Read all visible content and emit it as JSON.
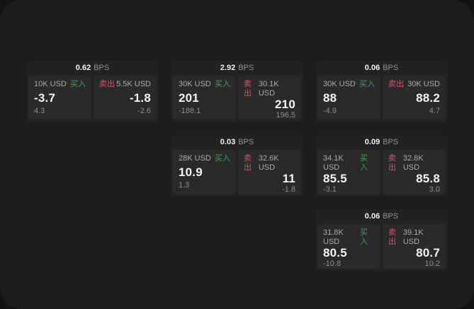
{
  "window": {
    "name": "fx-quote-board"
  },
  "colors": {
    "buy_green": "#43a05f",
    "sell_red": "#d6536a",
    "backdrop": "#121212",
    "window_bg": "#1d1d1d",
    "card_bg": "#222222",
    "panel_bg": "#2a2a2a"
  },
  "cards": [
    {
      "bps_value": "0.62",
      "bps_label": "BPS",
      "buy": {
        "size": "10K USD",
        "side_label": "买入",
        "price": "-3.7",
        "delta": "4.3"
      },
      "sell": {
        "size": "5.5K USD",
        "side_label": "卖出",
        "price": "-1.8",
        "delta": "-2.6"
      },
      "grid": {
        "row": 1,
        "col": 1
      }
    },
    {
      "bps_value": "2.92",
      "bps_label": "BPS",
      "buy": {
        "size": "30K USD",
        "side_label": "买入",
        "price": "201",
        "delta": "-188.1"
      },
      "sell": {
        "size": "30.1K USD",
        "side_label": "卖出",
        "price": "210",
        "delta": "196.5"
      },
      "grid": {
        "row": 1,
        "col": 2
      }
    },
    {
      "bps_value": "0.06",
      "bps_label": "BPS",
      "buy": {
        "size": "30K USD",
        "side_label": "买入",
        "price": "88",
        "delta": "-4.9"
      },
      "sell": {
        "size": "30K USD",
        "side_label": "卖出",
        "price": "88.2",
        "delta": "4.7"
      },
      "grid": {
        "row": 1,
        "col": 3
      }
    },
    {
      "bps_value": "0.03",
      "bps_label": "BPS",
      "buy": {
        "size": "28K USD",
        "side_label": "买入",
        "price": "10.9",
        "delta": "1.3"
      },
      "sell": {
        "size": "32.6K USD",
        "side_label": "卖出",
        "price": "11",
        "delta": "-1.8"
      },
      "grid": {
        "row": 2,
        "col": 2
      }
    },
    {
      "bps_value": "0.09",
      "bps_label": "BPS",
      "buy": {
        "size": "34.1K USD",
        "side_label": "买入",
        "price": "85.5",
        "delta": "-3.1"
      },
      "sell": {
        "size": "32.8K USD",
        "side_label": "卖出",
        "price": "85.8",
        "delta": "3.0"
      },
      "grid": {
        "row": 2,
        "col": 3
      }
    },
    {
      "bps_value": "0.06",
      "bps_label": "BPS",
      "buy": {
        "size": "31.8K USD",
        "side_label": "买入",
        "price": "80.5",
        "delta": "-10.8"
      },
      "sell": {
        "size": "39.1K USD",
        "side_label": "卖出",
        "price": "80.7",
        "delta": "10.2"
      },
      "grid": {
        "row": 3,
        "col": 3
      }
    }
  ]
}
